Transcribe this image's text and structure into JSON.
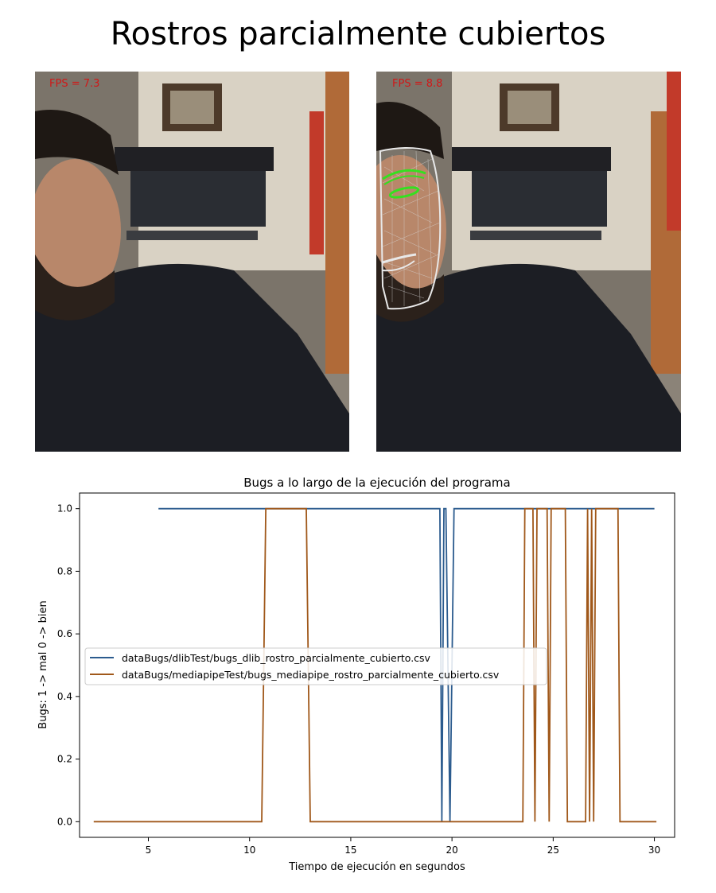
{
  "figure_title": "Rostros parcialmente cubiertos",
  "photos": [
    {
      "fps_label": "FPS = 7.3"
    },
    {
      "fps_label": "FPS = 8.8"
    }
  ],
  "chart_data": {
    "type": "line",
    "title": "Bugs a lo largo de la ejecución del programa",
    "xlabel": "Tiempo de ejecución en segundos",
    "ylabel": "Bugs: 1 -> mal  0 -> bien",
    "xlim": [
      1.6,
      31.0
    ],
    "ylim": [
      -0.05,
      1.05
    ],
    "xticks": [
      5,
      10,
      15,
      20,
      25,
      30
    ],
    "yticks": [
      0.0,
      0.2,
      0.4,
      0.6,
      0.8,
      1.0
    ],
    "legend_position": "center-left",
    "grid": false,
    "series": [
      {
        "name": "dataBugs/dlibTest/bugs_dlib_rostro_parcialmente_cubierto.csv",
        "color": "#2b5b8e",
        "x": [
          5.5,
          19.4,
          19.5,
          19.6,
          19.7,
          19.9,
          20.1,
          30.0
        ],
        "y": [
          1,
          1,
          0,
          1,
          1,
          0,
          1,
          1
        ]
      },
      {
        "name": "dataBugs/mediapipeTest/bugs_mediapipe_rostro_parcialmente_cubierto.csv",
        "color": "#a0581a",
        "x": [
          2.3,
          10.6,
          10.8,
          12.8,
          13.0,
          23.5,
          23.6,
          24.0,
          24.1,
          24.2,
          24.7,
          24.8,
          24.9,
          25.6,
          25.7,
          25.8,
          26.6,
          26.7,
          26.8,
          26.9,
          27.0,
          27.1,
          28.2,
          28.3,
          30.1
        ],
        "y": [
          0,
          0,
          1,
          1,
          0,
          0,
          1,
          1,
          0,
          1,
          1,
          0,
          1,
          1,
          0,
          0,
          0,
          1,
          0,
          1,
          0,
          1,
          1,
          0,
          0
        ]
      }
    ]
  }
}
